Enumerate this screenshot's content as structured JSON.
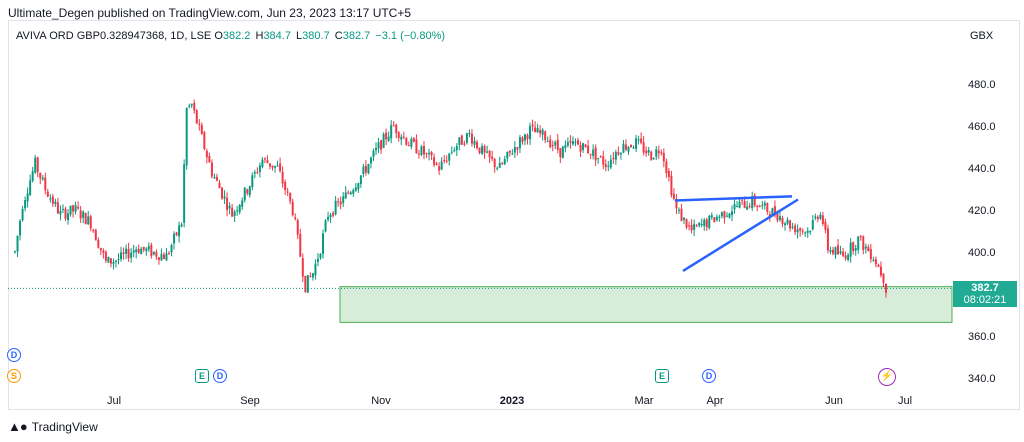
{
  "header": {
    "publisher": "Ultimate_Degen published on TradingView.com, Jun 23, 2023 13:17 UTC+5",
    "symbol": "AVIVA ORD GBP0.328947368, 1D, LSE",
    "o_label": "O",
    "o_value": "382.2",
    "h_label": "H",
    "h_value": "384.7",
    "l_label": "L",
    "l_value": "380.7",
    "c_label": "C",
    "c_value": "382.7",
    "change": "−3.1 (−0.80%)",
    "currency": "GBX"
  },
  "price_badge": {
    "price": "382.7",
    "countdown": "08:02:21"
  },
  "footer": {
    "brand": "TradingView"
  },
  "colors": {
    "up": "#089981",
    "down": "#f23645",
    "zone": "#c8e6c9",
    "line": "#2962ff",
    "badge": "#22ab94"
  },
  "events": [
    {
      "name": "dividend-marker-1",
      "letter": "D",
      "color": "#2962ff"
    },
    {
      "name": "split-marker-1",
      "letter": "S",
      "color": "#ff9800"
    },
    {
      "name": "earnings-marker-1",
      "letter": "E",
      "color": "#089981"
    },
    {
      "name": "dividend-marker-2",
      "letter": "D",
      "color": "#2962ff"
    },
    {
      "name": "earnings-marker-2",
      "letter": "E",
      "color": "#089981"
    },
    {
      "name": "dividend-marker-3",
      "letter": "D",
      "color": "#2962ff"
    },
    {
      "name": "flash-marker",
      "letter": "⚡",
      "color": "#9c27b0"
    }
  ],
  "chart_data": {
    "type": "candlestick",
    "y_ticks": [
      "480.0",
      "460.0",
      "440.0",
      "420.0",
      "400.0",
      "380.0",
      "360.0",
      "340.0"
    ],
    "x_ticks": [
      {
        "label": "Jul",
        "bold": false
      },
      {
        "label": "Sep",
        "bold": false
      },
      {
        "label": "Nov",
        "bold": false
      },
      {
        "label": "2023",
        "bold": true
      },
      {
        "label": "Mar",
        "bold": false
      },
      {
        "label": "Apr",
        "bold": false
      },
      {
        "label": "Jun",
        "bold": false
      },
      {
        "label": "Jul",
        "bold": false
      }
    ],
    "ylim": [
      333,
      492
    ],
    "last_price": 382.7,
    "support_zone": [
      366.5,
      383.5
    ],
    "trendlines": [
      {
        "from": 424.5,
        "to": 426.5
      },
      {
        "from": 391,
        "to": 425
      }
    ],
    "anchors": [
      [
        0,
        400
      ],
      [
        3,
        423
      ],
      [
        8,
        442
      ],
      [
        12,
        430
      ],
      [
        18,
        418
      ],
      [
        24,
        420
      ],
      [
        30,
        414
      ],
      [
        36,
        395
      ],
      [
        42,
        397
      ],
      [
        48,
        402
      ],
      [
        54,
        400
      ],
      [
        60,
        398
      ],
      [
        66,
        414
      ],
      [
        68,
        468
      ],
      [
        70,
        470
      ],
      [
        72,
        462
      ],
      [
        78,
        438
      ],
      [
        86,
        418
      ],
      [
        92,
        430
      ],
      [
        98,
        444
      ],
      [
        104,
        440
      ],
      [
        110,
        420
      ],
      [
        115,
        384
      ],
      [
        118,
        390
      ],
      [
        121,
        402
      ],
      [
        124,
        418
      ],
      [
        130,
        425
      ],
      [
        138,
        438
      ],
      [
        144,
        450
      ],
      [
        150,
        460
      ],
      [
        156,
        452
      ],
      [
        162,
        447
      ],
      [
        168,
        440
      ],
      [
        174,
        450
      ],
      [
        180,
        456
      ],
      [
        186,
        446
      ],
      [
        192,
        440
      ],
      [
        198,
        450
      ],
      [
        204,
        458
      ],
      [
        210,
        455
      ],
      [
        216,
        448
      ],
      [
        222,
        452
      ],
      [
        228,
        448
      ],
      [
        234,
        442
      ],
      [
        240,
        450
      ],
      [
        246,
        452
      ],
      [
        252,
        446
      ],
      [
        256,
        450
      ],
      [
        259,
        435
      ],
      [
        262,
        420
      ],
      [
        268,
        410
      ],
      [
        274,
        414
      ],
      [
        280,
        418
      ],
      [
        286,
        422
      ],
      [
        292,
        424
      ],
      [
        298,
        420
      ],
      [
        302,
        418
      ],
      [
        308,
        412
      ],
      [
        314,
        410
      ],
      [
        319,
        420
      ],
      [
        322,
        402
      ],
      [
        328,
        398
      ],
      [
        334,
        406
      ],
      [
        340,
        398
      ],
      [
        344,
        388
      ],
      [
        345,
        383
      ]
    ]
  }
}
